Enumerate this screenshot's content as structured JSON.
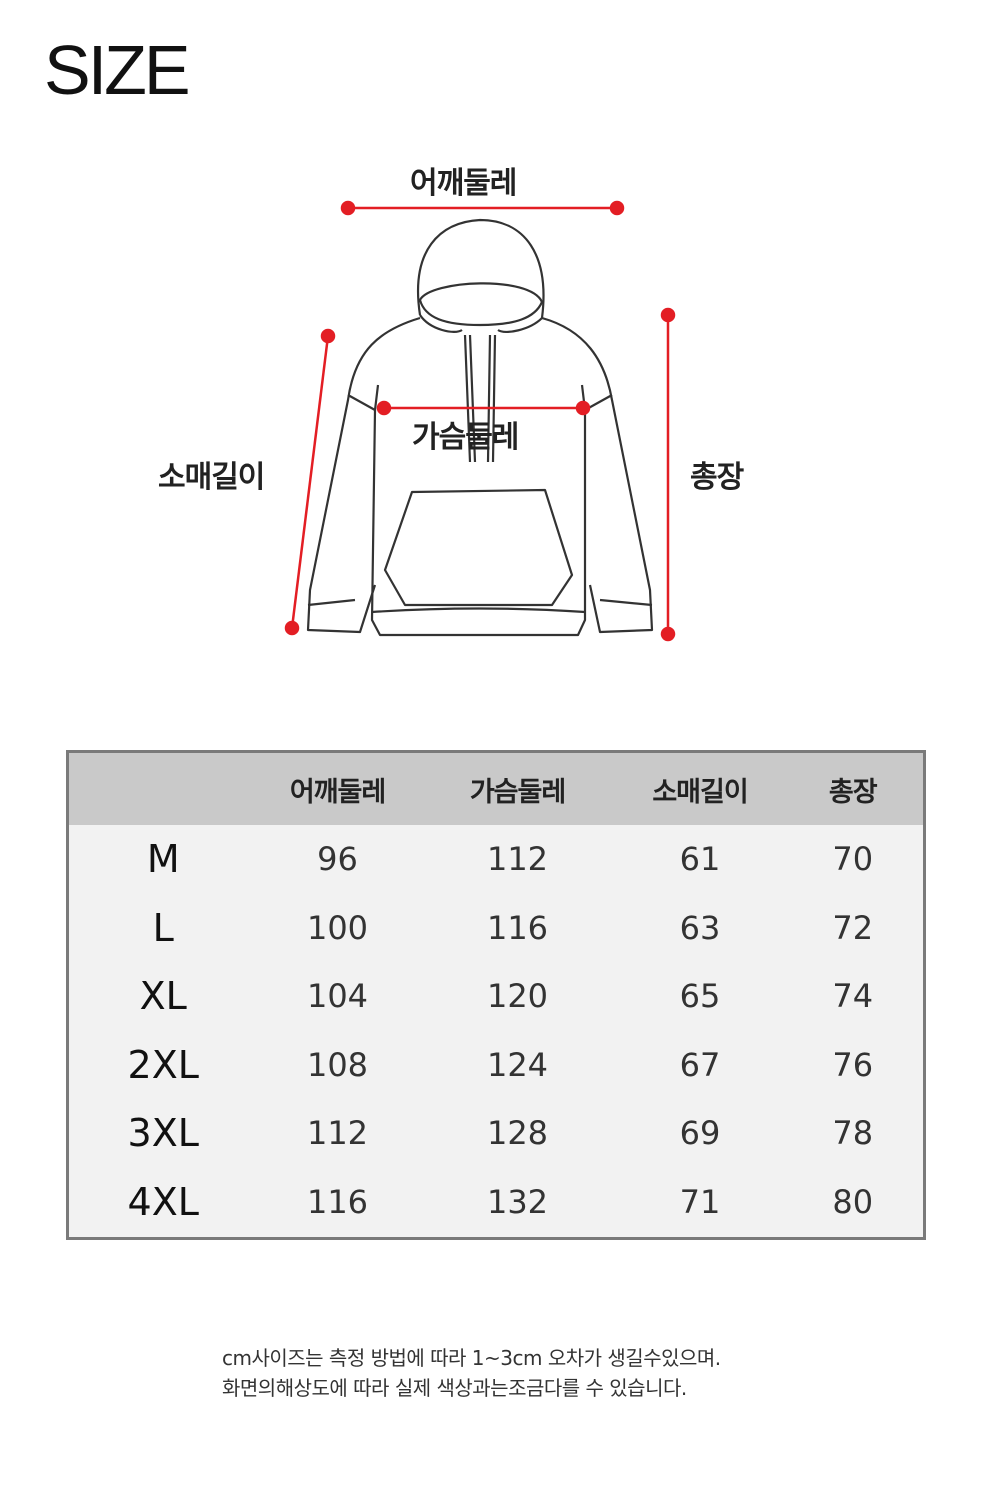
{
  "title": "SIZE",
  "diagram": {
    "shoulder": "어깨둘레",
    "chest": "가슴둘레",
    "sleeve": "소매길이",
    "length": "총장",
    "accent_color": "#e31e24"
  },
  "table": {
    "headers": [
      "",
      "어깨둘레",
      "가슴둘레",
      "소매길이",
      "총장"
    ],
    "rows": [
      [
        "M",
        "96",
        "112",
        "61",
        "70"
      ],
      [
        "L",
        "100",
        "116",
        "63",
        "72"
      ],
      [
        "XL",
        "104",
        "120",
        "65",
        "74"
      ],
      [
        "2XL",
        "108",
        "124",
        "67",
        "76"
      ],
      [
        "3XL",
        "112",
        "128",
        "69",
        "78"
      ],
      [
        "4XL",
        "116",
        "132",
        "71",
        "80"
      ]
    ]
  },
  "notes": [
    "cm사이즈는 측정 방법에 따라 1~3cm 오차가 생길수있으며.",
    "화면의해상도에 따라 실제 색상과는조금다를 수 있습니다."
  ]
}
